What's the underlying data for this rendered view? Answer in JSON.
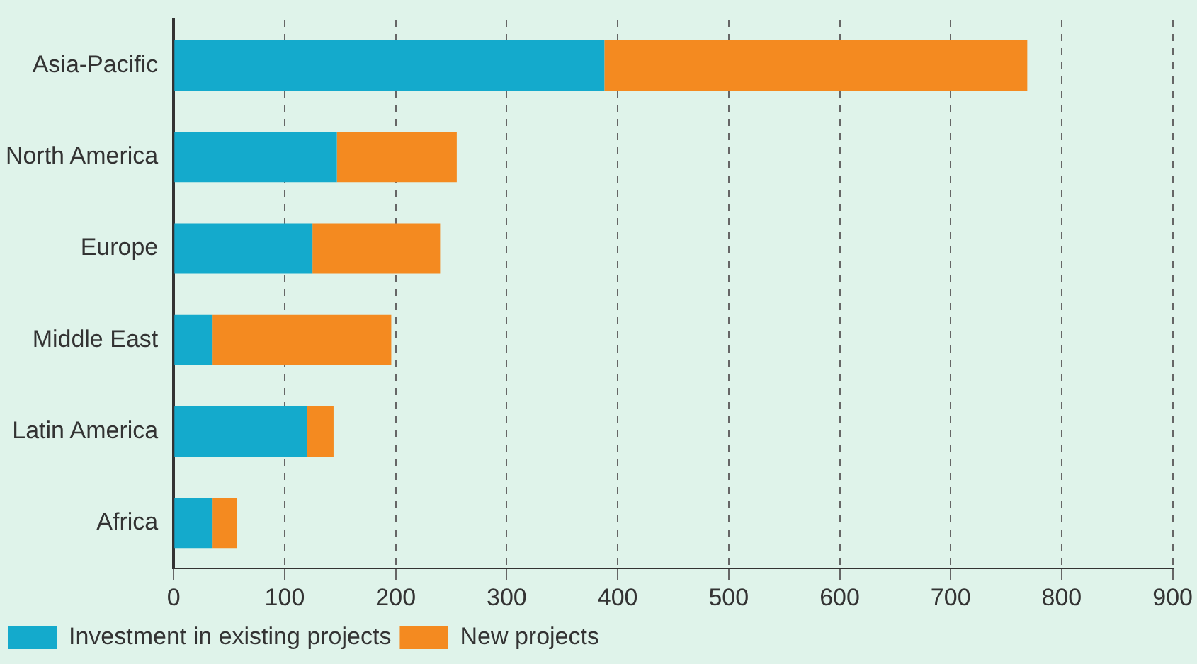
{
  "chart_data": {
    "type": "bar",
    "orientation": "horizontal",
    "stacked": true,
    "categories": [
      "Asia-Pacific",
      "North America",
      "Europe",
      "Middle East",
      "Latin America",
      "Africa"
    ],
    "series": [
      {
        "name": "Investment in existing projects",
        "color": "#14aacc",
        "values": [
          388,
          147,
          125,
          35,
          120,
          35
        ]
      },
      {
        "name": "New projects",
        "color": "#f48a20",
        "values": [
          381,
          108,
          115,
          161,
          24,
          22
        ]
      }
    ],
    "xlim": [
      0,
      900
    ],
    "xticks": [
      0,
      100,
      200,
      300,
      400,
      500,
      600,
      700,
      800,
      900
    ],
    "grid": "x",
    "legend": "bottom"
  }
}
